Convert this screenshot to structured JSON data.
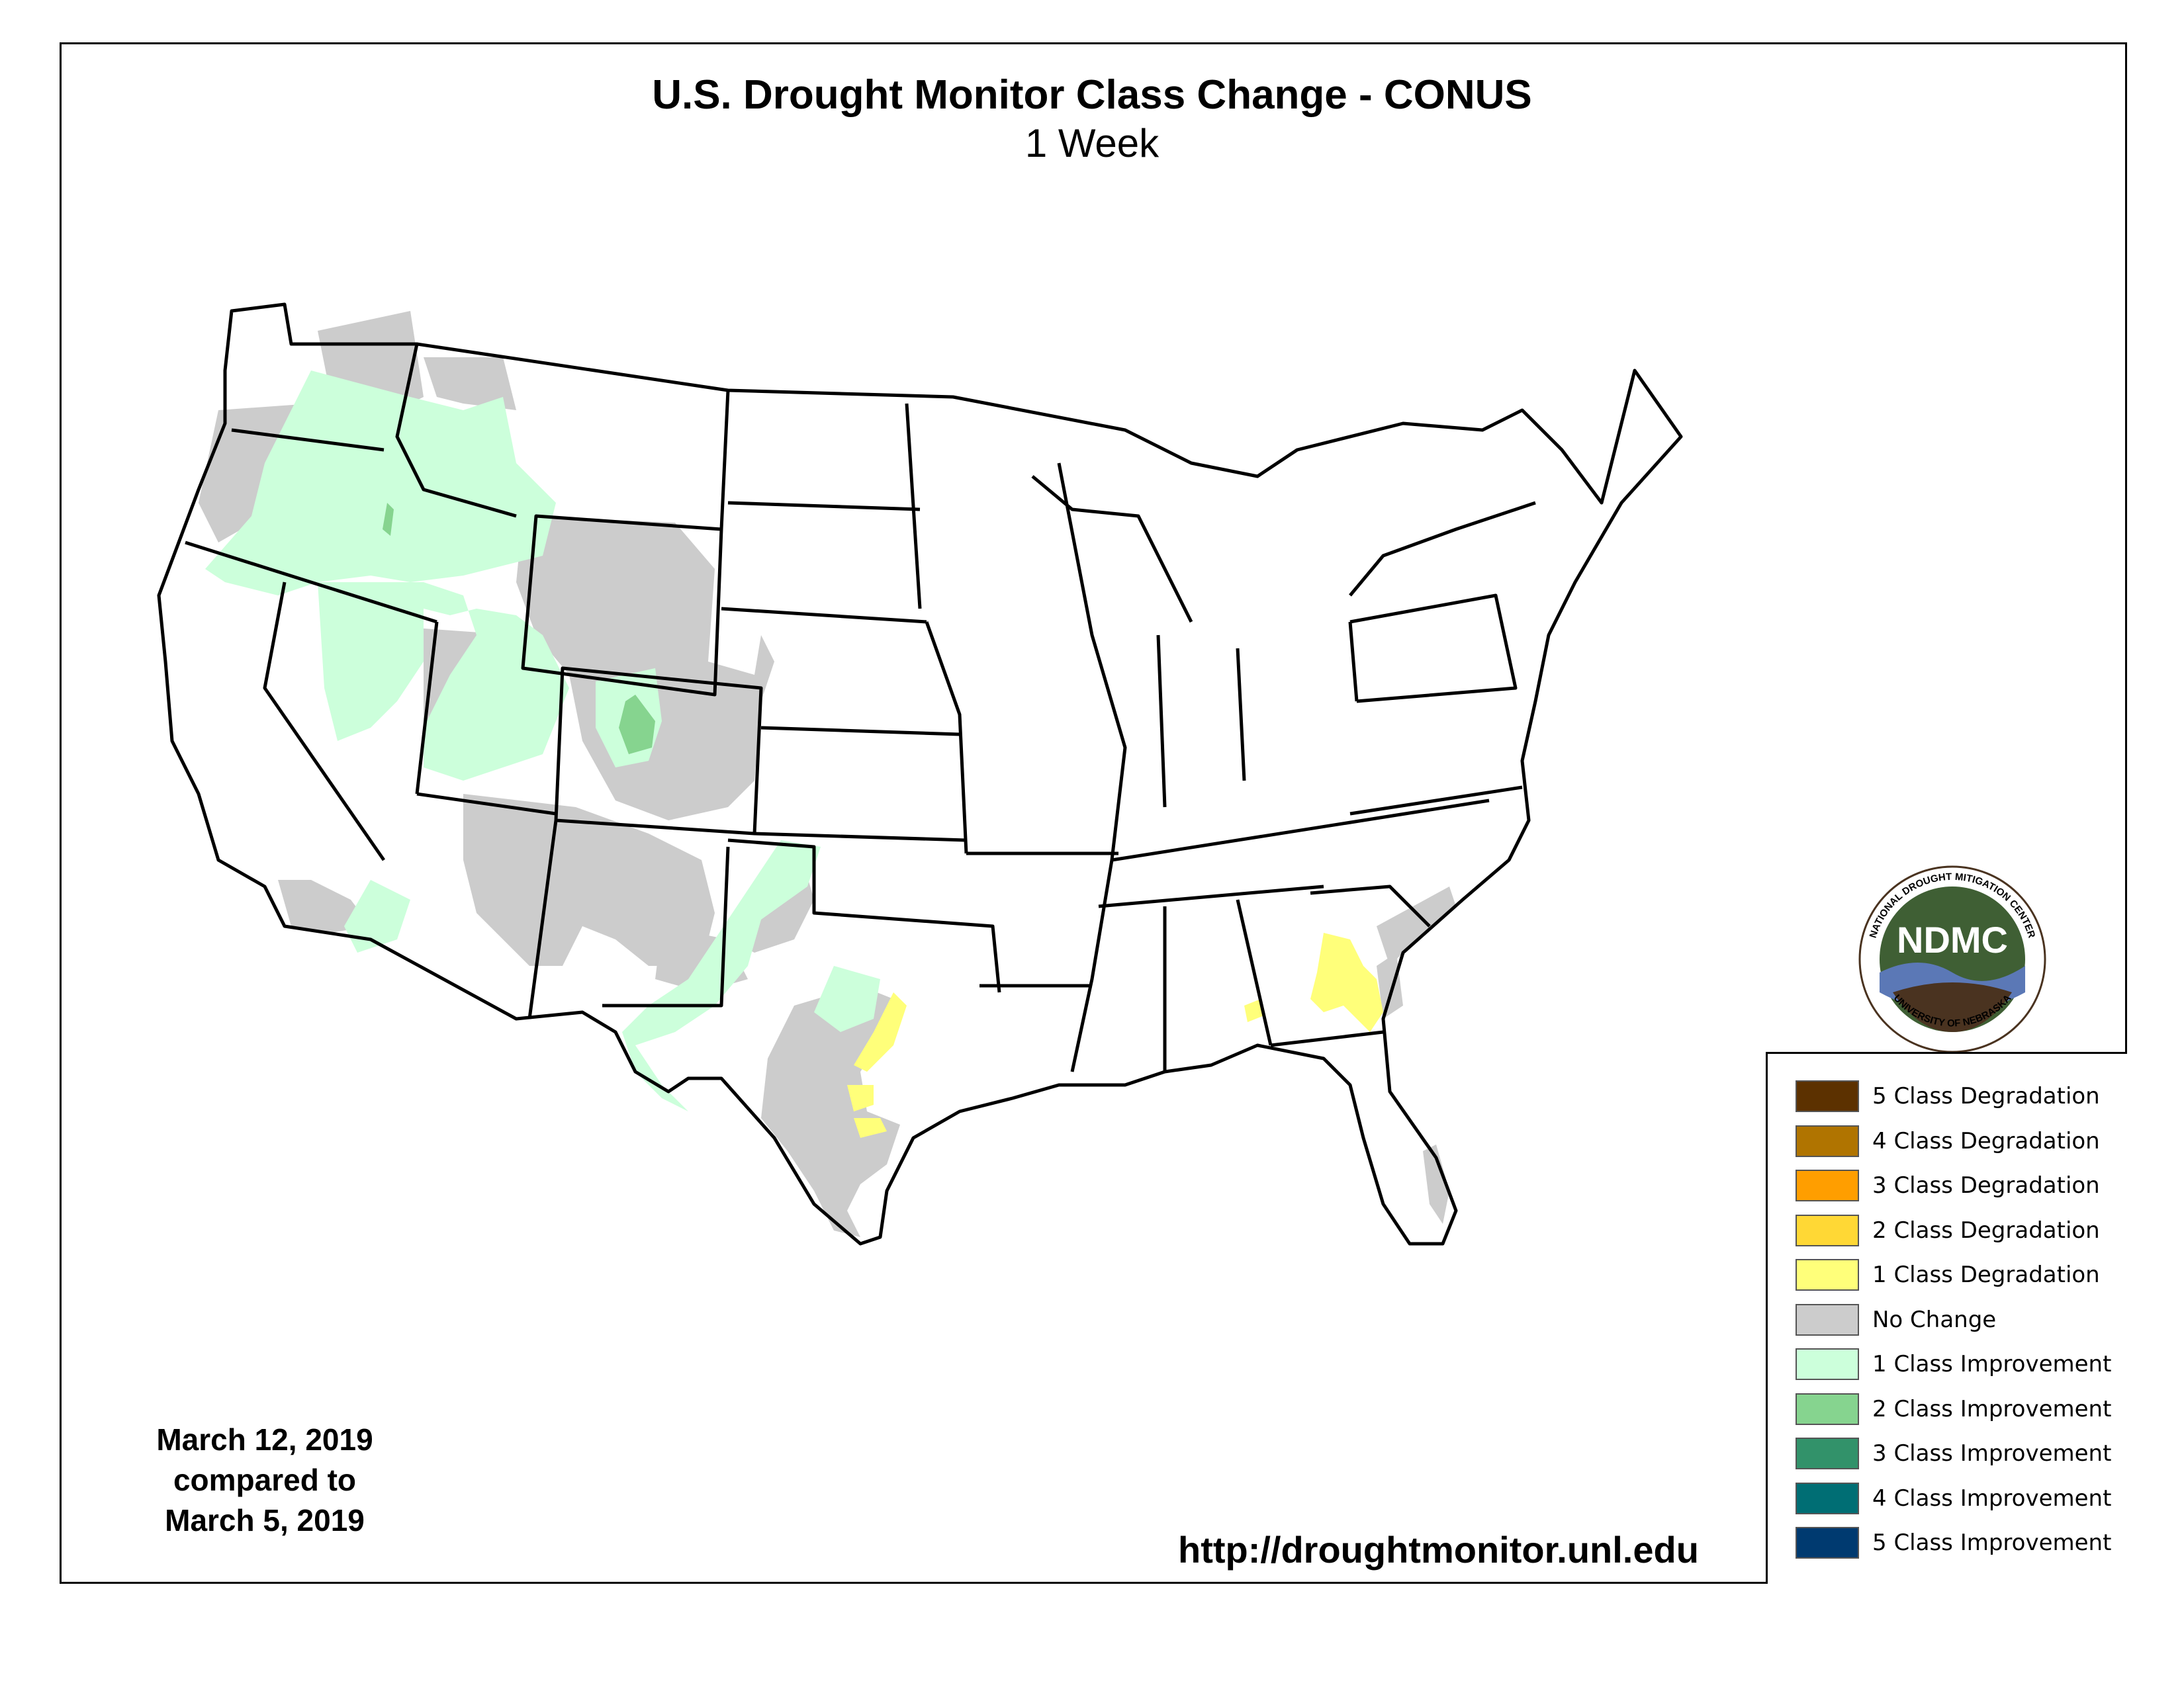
{
  "title": "U.S. Drought Monitor Class Change - CONUS",
  "subtitle": "1 Week",
  "date": {
    "line1": "March 12, 2019",
    "line2": "compared to",
    "line3": "March 5, 2019"
  },
  "url": "http://droughtmonitor.unl.edu",
  "logo": {
    "text": "NDMC",
    "ring_top": "NATIONAL DROUGHT MITIGATION CENTER",
    "ring_bottom": "UNIVERSITY OF NEBRASKA",
    "colors": {
      "dark_green": "#3f5f34",
      "blue": "#5b78b6",
      "brown": "#4a3320"
    }
  },
  "legend": [
    {
      "label": "5 Class Degradation",
      "color": "#5c3100"
    },
    {
      "label": "4 Class Degradation",
      "color": "#b07400"
    },
    {
      "label": "3 Class Degradation",
      "color": "#ff9e00"
    },
    {
      "label": "2 Class Degradation",
      "color": "#ffd835"
    },
    {
      "label": "1 Class Degradation",
      "color": "#ffff7a"
    },
    {
      "label": "No Change",
      "color": "#cccccc"
    },
    {
      "label": "1 Class Improvement",
      "color": "#ccffdb"
    },
    {
      "label": "2 Class Improvement",
      "color": "#86d48f"
    },
    {
      "label": "3 Class Improvement",
      "color": "#32926a"
    },
    {
      "label": "4 Class Improvement",
      "color": "#006e74"
    },
    {
      "label": "5 Class Improvement",
      "color": "#003a70"
    }
  ],
  "map_colors": {
    "no_change": "#cccccc",
    "improve_1": "#ccffdb",
    "improve_2": "#86d48f",
    "degrade_1": "#ffff7a",
    "outline": "#000000"
  }
}
